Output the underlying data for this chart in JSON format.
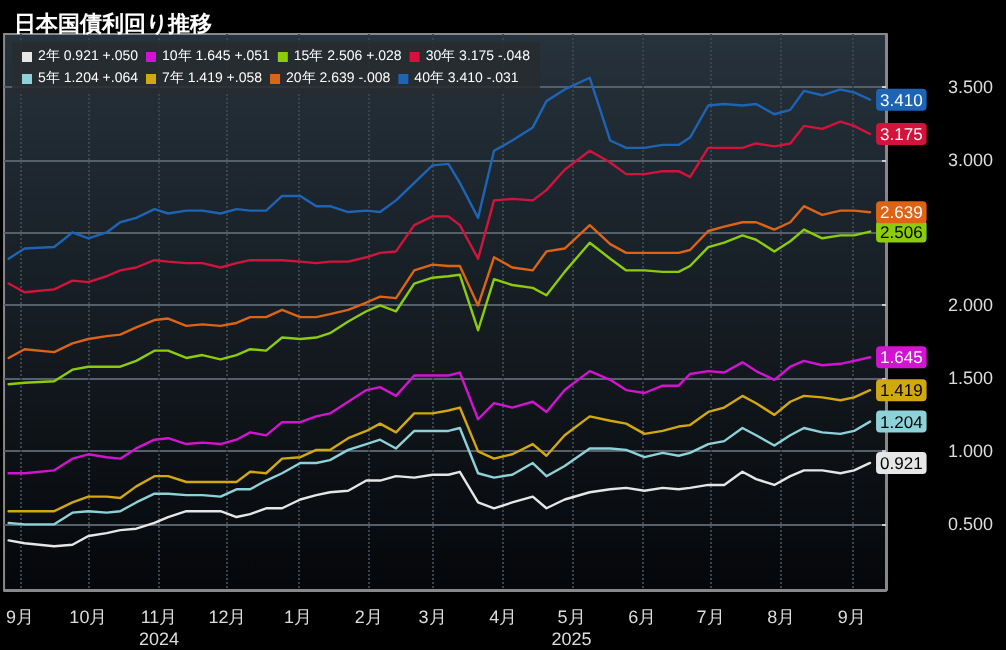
{
  "chart_data": {
    "type": "line",
    "title": "日本国債利回り推移",
    "x": [
      "2024-09-10",
      "2024-09-17",
      "2024-09-30",
      "2024-10-08",
      "2024-10-15",
      "2024-10-23",
      "2024-10-29",
      "2024-11-05",
      "2024-11-13",
      "2024-11-19",
      "2024-11-27",
      "2024-12-04",
      "2024-12-12",
      "2024-12-19",
      "2024-12-25",
      "2025-01-01",
      "2025-01-08",
      "2025-01-16",
      "2025-01-23",
      "2025-01-29",
      "2025-02-06",
      "2025-02-14",
      "2025-02-20",
      "2025-02-27",
      "2025-03-07",
      "2025-03-15",
      "2025-03-22",
      "2025-03-27",
      "2025-04-04",
      "2025-04-11",
      "2025-04-19",
      "2025-04-28",
      "2025-05-04",
      "2025-05-12",
      "2025-05-23",
      "2025-06-01",
      "2025-06-08",
      "2025-06-16",
      "2025-06-24",
      "2025-07-01",
      "2025-07-06",
      "2025-07-14",
      "2025-07-21",
      "2025-07-29",
      "2025-08-04",
      "2025-08-12",
      "2025-08-19",
      "2025-08-25",
      "2025-09-02",
      "2025-09-10",
      "2025-09-16",
      "2025-09-23"
    ],
    "series": [
      {
        "name": "2年 0.921 +.050",
        "color": "#e6e6e6",
        "values": [
          0.39,
          0.37,
          0.35,
          0.36,
          0.42,
          0.44,
          0.46,
          0.47,
          0.51,
          0.55,
          0.59,
          0.59,
          0.59,
          0.55,
          0.57,
          0.61,
          0.61,
          0.67,
          0.7,
          0.72,
          0.73,
          0.8,
          0.8,
          0.83,
          0.82,
          0.84,
          0.84,
          0.86,
          0.65,
          0.61,
          0.65,
          0.69,
          0.61,
          0.67,
          0.72,
          0.74,
          0.75,
          0.73,
          0.75,
          0.74,
          0.75,
          0.77,
          0.77,
          0.86,
          0.81,
          0.77,
          0.83,
          0.87,
          0.87,
          0.85,
          0.87,
          0.921
        ],
        "value_labels": [
          null,
          null,
          null,
          null,
          null,
          null,
          null,
          null,
          null,
          null,
          null,
          null,
          null,
          null,
          null,
          null,
          null,
          null,
          null,
          null,
          null,
          null,
          null,
          null,
          null,
          null,
          null,
          null,
          null,
          null,
          null,
          null,
          null,
          null,
          null,
          null,
          null,
          null,
          null,
          null,
          null,
          null,
          null,
          null,
          null,
          null,
          null,
          null,
          null,
          null,
          null,
          "0.921"
        ]
      },
      {
        "name": "10年 1.645 +.051",
        "color": "#d214d2",
        "values": [
          0.85,
          0.85,
          0.87,
          0.95,
          0.98,
          0.96,
          0.95,
          1.02,
          1.08,
          1.09,
          1.05,
          1.06,
          1.05,
          1.08,
          1.13,
          1.11,
          1.2,
          1.2,
          1.24,
          1.26,
          1.34,
          1.42,
          1.44,
          1.38,
          1.52,
          1.52,
          1.52,
          1.54,
          1.22,
          1.33,
          1.3,
          1.34,
          1.27,
          1.42,
          1.55,
          1.49,
          1.42,
          1.4,
          1.45,
          1.45,
          1.53,
          1.55,
          1.54,
          1.61,
          1.55,
          1.49,
          1.58,
          1.62,
          1.59,
          1.6,
          1.62,
          1.645
        ],
        "value_labels": [
          null,
          null,
          null,
          null,
          null,
          null,
          null,
          null,
          null,
          null,
          null,
          null,
          null,
          null,
          null,
          null,
          null,
          null,
          null,
          null,
          null,
          null,
          null,
          null,
          null,
          null,
          null,
          null,
          null,
          null,
          null,
          null,
          null,
          null,
          null,
          null,
          null,
          null,
          null,
          null,
          null,
          null,
          null,
          null,
          null,
          null,
          null,
          null,
          null,
          null,
          null,
          "1.645"
        ]
      },
      {
        "name": "15年 2.506 +.028",
        "color": "#8ccc0a",
        "values": [
          1.46,
          1.47,
          1.48,
          1.56,
          1.58,
          1.58,
          1.58,
          1.62,
          1.69,
          1.69,
          1.64,
          1.66,
          1.63,
          1.66,
          1.7,
          1.69,
          1.78,
          1.77,
          1.78,
          1.81,
          1.89,
          1.96,
          2.0,
          1.96,
          2.15,
          2.19,
          2.2,
          2.21,
          1.83,
          2.18,
          2.14,
          2.12,
          2.07,
          2.23,
          2.43,
          2.32,
          2.24,
          2.24,
          2.23,
          2.23,
          2.27,
          2.4,
          2.43,
          2.48,
          2.45,
          2.37,
          2.44,
          2.52,
          2.46,
          2.48,
          2.48,
          2.506
        ],
        "value_labels": [
          null,
          null,
          null,
          null,
          null,
          null,
          null,
          null,
          null,
          null,
          null,
          null,
          null,
          null,
          null,
          null,
          null,
          null,
          null,
          null,
          null,
          null,
          null,
          null,
          null,
          null,
          null,
          null,
          null,
          null,
          null,
          null,
          null,
          null,
          null,
          null,
          null,
          null,
          null,
          null,
          null,
          null,
          null,
          null,
          null,
          null,
          null,
          null,
          null,
          null,
          null,
          "2.506"
        ]
      },
      {
        "name": "30年 3.175 -.048",
        "color": "#d2143c",
        "values": [
          2.15,
          2.09,
          2.11,
          2.17,
          2.16,
          2.2,
          2.24,
          2.26,
          2.31,
          2.3,
          2.29,
          2.29,
          2.26,
          2.29,
          2.31,
          2.31,
          2.31,
          2.3,
          2.29,
          2.3,
          2.3,
          2.33,
          2.36,
          2.37,
          2.55,
          2.61,
          2.61,
          2.55,
          2.32,
          2.72,
          2.73,
          2.72,
          2.79,
          2.93,
          3.06,
          2.98,
          2.9,
          2.9,
          2.92,
          2.92,
          2.88,
          3.08,
          3.08,
          3.08,
          3.11,
          3.09,
          3.11,
          3.23,
          3.21,
          3.26,
          3.23,
          3.175
        ],
        "value_labels": [
          null,
          null,
          null,
          null,
          null,
          null,
          null,
          null,
          null,
          null,
          null,
          null,
          null,
          null,
          null,
          null,
          null,
          null,
          null,
          null,
          null,
          null,
          null,
          null,
          null,
          null,
          null,
          null,
          null,
          null,
          null,
          null,
          null,
          null,
          null,
          null,
          null,
          null,
          null,
          null,
          null,
          null,
          null,
          null,
          null,
          null,
          null,
          null,
          null,
          null,
          null,
          "3.175"
        ]
      },
      {
        "name": "5年 1.204 +.064",
        "color": "#8cd2d8",
        "values": [
          0.51,
          0.5,
          0.5,
          0.58,
          0.59,
          0.58,
          0.59,
          0.65,
          0.71,
          0.71,
          0.7,
          0.7,
          0.69,
          0.74,
          0.74,
          0.8,
          0.85,
          0.92,
          0.92,
          0.94,
          1.01,
          1.05,
          1.08,
          1.02,
          1.14,
          1.14,
          1.14,
          1.16,
          0.85,
          0.82,
          0.84,
          0.92,
          0.83,
          0.9,
          1.02,
          1.02,
          1.01,
          0.96,
          0.99,
          0.97,
          0.99,
          1.05,
          1.07,
          1.16,
          1.11,
          1.04,
          1.11,
          1.16,
          1.13,
          1.12,
          1.14,
          1.204
        ],
        "value_labels": [
          null,
          null,
          null,
          null,
          null,
          null,
          null,
          null,
          null,
          null,
          null,
          null,
          null,
          null,
          null,
          null,
          null,
          null,
          null,
          null,
          null,
          null,
          null,
          null,
          null,
          null,
          null,
          null,
          null,
          null,
          null,
          null,
          null,
          null,
          null,
          null,
          null,
          null,
          null,
          null,
          null,
          null,
          null,
          null,
          null,
          null,
          null,
          null,
          null,
          null,
          null,
          "1.204"
        ]
      },
      {
        "name": "7年 1.419 +.058",
        "color": "#d2a810",
        "values": [
          0.59,
          0.59,
          0.59,
          0.65,
          0.69,
          0.69,
          0.68,
          0.76,
          0.83,
          0.83,
          0.79,
          0.79,
          0.79,
          0.79,
          0.86,
          0.85,
          0.95,
          0.96,
          1.01,
          1.01,
          1.09,
          1.14,
          1.19,
          1.13,
          1.26,
          1.26,
          1.28,
          1.3,
          1.0,
          0.95,
          0.98,
          1.05,
          0.97,
          1.11,
          1.24,
          1.21,
          1.19,
          1.12,
          1.14,
          1.17,
          1.18,
          1.27,
          1.3,
          1.38,
          1.33,
          1.25,
          1.34,
          1.38,
          1.37,
          1.35,
          1.37,
          1.419
        ],
        "value_labels": [
          null,
          null,
          null,
          null,
          null,
          null,
          null,
          null,
          null,
          null,
          null,
          null,
          null,
          null,
          null,
          null,
          null,
          null,
          null,
          null,
          null,
          null,
          null,
          null,
          null,
          null,
          null,
          null,
          null,
          null,
          null,
          null,
          null,
          null,
          null,
          null,
          null,
          null,
          null,
          null,
          null,
          null,
          null,
          null,
          null,
          null,
          null,
          null,
          null,
          null,
          null,
          "1.419"
        ]
      },
      {
        "name": "20年 2.639 -.008",
        "color": "#dc6414",
        "values": [
          1.64,
          1.7,
          1.68,
          1.74,
          1.77,
          1.79,
          1.8,
          1.85,
          1.9,
          1.91,
          1.86,
          1.87,
          1.86,
          1.88,
          1.92,
          1.92,
          1.97,
          1.92,
          1.92,
          1.94,
          1.97,
          2.02,
          2.06,
          2.05,
          2.24,
          2.28,
          2.27,
          2.27,
          2.0,
          2.33,
          2.26,
          2.24,
          2.37,
          2.39,
          2.55,
          2.42,
          2.36,
          2.36,
          2.36,
          2.36,
          2.38,
          2.51,
          2.54,
          2.57,
          2.57,
          2.52,
          2.57,
          2.68,
          2.62,
          2.65,
          2.65,
          2.639
        ],
        "value_labels": [
          null,
          null,
          null,
          null,
          null,
          null,
          null,
          null,
          null,
          null,
          null,
          null,
          null,
          null,
          null,
          null,
          null,
          null,
          null,
          null,
          null,
          null,
          null,
          null,
          null,
          null,
          null,
          null,
          null,
          null,
          null,
          null,
          null,
          null,
          null,
          null,
          null,
          null,
          null,
          null,
          null,
          null,
          null,
          null,
          null,
          null,
          null,
          null,
          null,
          null,
          null,
          "2.639"
        ]
      },
      {
        "name": "40年 3.410 -.031",
        "color": "#1e64b4",
        "values": [
          2.32,
          2.39,
          2.4,
          2.5,
          2.46,
          2.5,
          2.57,
          2.6,
          2.66,
          2.63,
          2.65,
          2.65,
          2.63,
          2.66,
          2.65,
          2.65,
          2.75,
          2.75,
          2.68,
          2.68,
          2.64,
          2.65,
          2.64,
          2.72,
          2.84,
          2.96,
          2.97,
          2.84,
          2.6,
          3.06,
          3.13,
          3.22,
          3.4,
          3.48,
          3.56,
          3.13,
          3.08,
          3.08,
          3.1,
          3.1,
          3.15,
          3.37,
          3.38,
          3.37,
          3.38,
          3.31,
          3.34,
          3.47,
          3.44,
          3.48,
          3.46,
          3.41
        ],
        "value_labels": [
          null,
          null,
          null,
          null,
          null,
          null,
          null,
          null,
          null,
          null,
          null,
          null,
          null,
          null,
          null,
          null,
          null,
          null,
          null,
          null,
          null,
          null,
          null,
          null,
          null,
          null,
          null,
          null,
          null,
          null,
          null,
          null,
          null,
          null,
          null,
          null,
          null,
          null,
          null,
          null,
          null,
          null,
          null,
          null,
          null,
          null,
          null,
          null,
          null,
          null,
          null,
          "3.410"
        ]
      }
    ],
    "xlim": [
      "2024-09-08",
      "2025-09-30"
    ],
    "xticks": [
      {
        "value": "2024-09-15",
        "label": "9月"
      },
      {
        "value": "2024-10-15",
        "label": "10月"
      },
      {
        "value": "2024-11-15",
        "label": "11月\n2024"
      },
      {
        "value": "2024-12-15",
        "label": "12月"
      },
      {
        "value": "2025-01-15",
        "label": "1月"
      },
      {
        "value": "2025-02-15",
        "label": "2月"
      },
      {
        "value": "2025-03-15",
        "label": "3月"
      },
      {
        "value": "2025-04-15",
        "label": "4月"
      },
      {
        "value": "2025-05-15",
        "label": "5月\n2025"
      },
      {
        "value": "2025-06-15",
        "label": "6月"
      },
      {
        "value": "2025-07-15",
        "label": "7月"
      },
      {
        "value": "2025-08-15",
        "label": "8月"
      },
      {
        "value": "2025-09-15",
        "label": "9月"
      }
    ],
    "ylim": [
      0.05,
      3.86
    ],
    "yticks": [
      {
        "value": 0.5,
        "label": "0.500"
      },
      {
        "value": 1,
        "label": "1.000"
      },
      {
        "value": 1.5,
        "label": "1.500"
      },
      {
        "value": 2,
        "label": "2.000"
      },
      {
        "value": 2.5,
        "label": null
      },
      {
        "value": 3,
        "label": "3.000"
      },
      {
        "value": 3.5,
        "label": "3.500"
      }
    ],
    "grid": true,
    "legend": "top left",
    "marker": "none",
    "line_style": "solid"
  }
}
